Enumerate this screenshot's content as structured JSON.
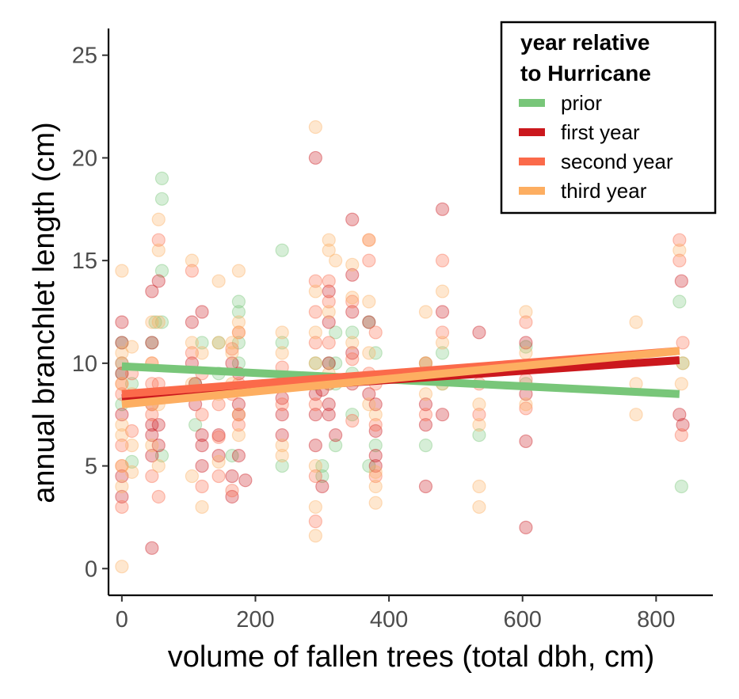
{
  "chart_data": {
    "type": "scatter",
    "title": "",
    "xlabel": "volume of fallen trees (total dbh, cm)",
    "ylabel": "annual branchlet length (cm)",
    "xlim": [
      -20,
      885
    ],
    "ylim": [
      -1.3,
      26.3
    ],
    "xticks": [
      0,
      200,
      400,
      600,
      800
    ],
    "yticks": [
      0,
      5,
      10,
      15,
      20,
      25
    ],
    "grid": false,
    "legend_position": "top-right",
    "legend": {
      "title_lines": [
        "year relative",
        "to Hurricane"
      ]
    },
    "series": [
      {
        "name": "prior",
        "color": "#78c679",
        "trend": {
          "x": [
            0,
            835
          ],
          "y": [
            9.85,
            8.5
          ]
        },
        "points": [
          [
            0,
            10
          ],
          [
            0,
            9.5
          ],
          [
            0,
            8
          ],
          [
            0,
            11
          ],
          [
            15,
            9
          ],
          [
            15,
            5.2
          ],
          [
            45,
            11
          ],
          [
            50,
            12
          ],
          [
            60,
            19
          ],
          [
            60,
            18
          ],
          [
            60,
            14.5
          ],
          [
            60,
            12
          ],
          [
            60,
            5.5
          ],
          [
            110,
            9
          ],
          [
            110,
            7
          ],
          [
            120,
            11
          ],
          [
            145,
            11
          ],
          [
            145,
            9.5
          ],
          [
            165,
            5.5
          ],
          [
            175,
            13
          ],
          [
            175,
            12.5
          ],
          [
            175,
            11
          ],
          [
            175,
            10
          ],
          [
            240,
            15.5
          ],
          [
            240,
            11
          ],
          [
            240,
            9
          ],
          [
            240,
            5
          ],
          [
            290,
            10
          ],
          [
            290,
            9
          ],
          [
            300,
            5
          ],
          [
            300,
            4.5
          ],
          [
            310,
            10
          ],
          [
            310,
            9
          ],
          [
            320,
            11.5
          ],
          [
            320,
            10
          ],
          [
            320,
            9
          ],
          [
            320,
            6
          ],
          [
            345,
            11.5
          ],
          [
            345,
            9.5
          ],
          [
            345,
            7.5
          ],
          [
            370,
            5
          ],
          [
            370,
            12
          ],
          [
            380,
            10.5
          ],
          [
            380,
            6
          ],
          [
            455,
            6
          ],
          [
            455,
            10
          ],
          [
            480,
            10.5
          ],
          [
            480,
            9
          ],
          [
            535,
            6.5
          ],
          [
            605,
            10.8
          ],
          [
            605,
            9
          ],
          [
            835,
            13
          ],
          [
            840,
            10
          ],
          [
            838,
            4
          ]
        ]
      },
      {
        "name": "first year",
        "color": "#cb181d",
        "trend": {
          "x": [
            0,
            835
          ],
          "y": [
            8.3,
            10.15
          ]
        },
        "points": [
          [
            0,
            12
          ],
          [
            0,
            11
          ],
          [
            0,
            9.5
          ],
          [
            0,
            7.5
          ],
          [
            0,
            4.5
          ],
          [
            0,
            3.5
          ],
          [
            45,
            13.5
          ],
          [
            45,
            11
          ],
          [
            45,
            8
          ],
          [
            45,
            7
          ],
          [
            45,
            6.5
          ],
          [
            45,
            5.5
          ],
          [
            45,
            1
          ],
          [
            55,
            14
          ],
          [
            55,
            7
          ],
          [
            55,
            6
          ],
          [
            105,
            12
          ],
          [
            105,
            10
          ],
          [
            110,
            9
          ],
          [
            110,
            8
          ],
          [
            120,
            12.5
          ],
          [
            120,
            6.5
          ],
          [
            120,
            6
          ],
          [
            120,
            5
          ],
          [
            145,
            6.5
          ],
          [
            145,
            5.5
          ],
          [
            165,
            10
          ],
          [
            165,
            4.5
          ],
          [
            165,
            3.5
          ],
          [
            175,
            9.5
          ],
          [
            175,
            8
          ],
          [
            175,
            7.5
          ],
          [
            175,
            5.5
          ],
          [
            185,
            4.3
          ],
          [
            240,
            8.3
          ],
          [
            240,
            7.5
          ],
          [
            240,
            6.5
          ],
          [
            290,
            20
          ],
          [
            290,
            8.5
          ],
          [
            290,
            7.5
          ],
          [
            290,
            6
          ],
          [
            300,
            8.7
          ],
          [
            300,
            4
          ],
          [
            310,
            13.5
          ],
          [
            310,
            12
          ],
          [
            310,
            10
          ],
          [
            310,
            8
          ],
          [
            310,
            7.5
          ],
          [
            320,
            6.5
          ],
          [
            345,
            17
          ],
          [
            345,
            14.3
          ],
          [
            345,
            12.5
          ],
          [
            345,
            10.5
          ],
          [
            345,
            9
          ],
          [
            370,
            12
          ],
          [
            370,
            8.5
          ],
          [
            380,
            8
          ],
          [
            380,
            6.7
          ],
          [
            380,
            5.5
          ],
          [
            380,
            5
          ],
          [
            455,
            8
          ],
          [
            455,
            7
          ],
          [
            455,
            4
          ],
          [
            480,
            17.5
          ],
          [
            480,
            12.5
          ],
          [
            480,
            7.5
          ],
          [
            535,
            11.5
          ],
          [
            605,
            11
          ],
          [
            605,
            8.5
          ],
          [
            605,
            6.2
          ],
          [
            605,
            2
          ],
          [
            835,
            7.5
          ],
          [
            840,
            7
          ],
          [
            838,
            14
          ]
        ]
      },
      {
        "name": "second year",
        "color": "#fb6a4a",
        "trend": {
          "x": [
            0,
            835
          ],
          "y": [
            8.5,
            10.6
          ]
        },
        "points": [
          [
            0,
            10
          ],
          [
            0,
            9
          ],
          [
            0,
            8.5
          ],
          [
            0,
            6
          ],
          [
            0,
            5
          ],
          [
            0,
            3
          ],
          [
            15,
            9.5
          ],
          [
            15,
            6.7
          ],
          [
            45,
            10
          ],
          [
            45,
            9
          ],
          [
            45,
            7.5
          ],
          [
            45,
            4.5
          ],
          [
            55,
            16
          ],
          [
            55,
            9
          ],
          [
            55,
            3.5
          ],
          [
            105,
            14.5
          ],
          [
            105,
            10.5
          ],
          [
            120,
            9.5
          ],
          [
            120,
            7.5
          ],
          [
            120,
            4
          ],
          [
            145,
            8
          ],
          [
            145,
            6.4
          ],
          [
            145,
            4.5
          ],
          [
            165,
            10.7
          ],
          [
            165,
            8.5
          ],
          [
            165,
            3.8
          ],
          [
            175,
            11.5
          ],
          [
            175,
            9
          ],
          [
            175,
            7
          ],
          [
            240,
            9.8
          ],
          [
            240,
            8
          ],
          [
            290,
            14
          ],
          [
            290,
            12.5
          ],
          [
            290,
            11
          ],
          [
            290,
            8
          ],
          [
            290,
            4.5
          ],
          [
            290,
            2.3
          ],
          [
            310,
            14
          ],
          [
            310,
            13
          ],
          [
            310,
            11
          ],
          [
            310,
            9
          ],
          [
            345,
            13
          ],
          [
            345,
            10.2
          ],
          [
            345,
            7.2
          ],
          [
            370,
            16
          ],
          [
            370,
            15
          ],
          [
            370,
            9.5
          ],
          [
            380,
            11.5
          ],
          [
            380,
            9
          ],
          [
            380,
            7
          ],
          [
            380,
            4.5
          ],
          [
            455,
            10
          ],
          [
            455,
            7.5
          ],
          [
            480,
            15
          ],
          [
            480,
            11.5
          ],
          [
            480,
            9.5
          ],
          [
            535,
            9
          ],
          [
            535,
            7.5
          ],
          [
            605,
            12
          ],
          [
            605,
            9.2
          ],
          [
            605,
            7.8
          ],
          [
            835,
            16
          ],
          [
            835,
            15
          ],
          [
            840,
            11
          ],
          [
            838,
            6.5
          ]
        ]
      },
      {
        "name": "third year",
        "color": "#fdae61",
        "trend": {
          "x": [
            0,
            835
          ],
          "y": [
            8.0,
            10.6
          ]
        },
        "points": [
          [
            0,
            14.5
          ],
          [
            0,
            10.5
          ],
          [
            0,
            9
          ],
          [
            0,
            7
          ],
          [
            0,
            6.5
          ],
          [
            0,
            5
          ],
          [
            0,
            4
          ],
          [
            0,
            0.1
          ],
          [
            15,
            10.8
          ],
          [
            15,
            8.5
          ],
          [
            15,
            6
          ],
          [
            15,
            4.7
          ],
          [
            45,
            12
          ],
          [
            45,
            10
          ],
          [
            45,
            8
          ],
          [
            45,
            6
          ],
          [
            55,
            17
          ],
          [
            55,
            15.5
          ],
          [
            55,
            12
          ],
          [
            55,
            8
          ],
          [
            55,
            5
          ],
          [
            105,
            15
          ],
          [
            105,
            11
          ],
          [
            105,
            9
          ],
          [
            105,
            4.5
          ],
          [
            120,
            10.5
          ],
          [
            120,
            8.5
          ],
          [
            120,
            3
          ],
          [
            145,
            14
          ],
          [
            145,
            11
          ],
          [
            145,
            8.5
          ],
          [
            145,
            5.2
          ],
          [
            165,
            11
          ],
          [
            165,
            10.5
          ],
          [
            165,
            9
          ],
          [
            175,
            14.5
          ],
          [
            175,
            12
          ],
          [
            175,
            11.5
          ],
          [
            175,
            7.5
          ],
          [
            175,
            6.5
          ],
          [
            240,
            11.5
          ],
          [
            240,
            10.5
          ],
          [
            240,
            9
          ],
          [
            240,
            6
          ],
          [
            240,
            5.5
          ],
          [
            290,
            21.5
          ],
          [
            290,
            13.5
          ],
          [
            290,
            11.5
          ],
          [
            290,
            10
          ],
          [
            290,
            5
          ],
          [
            290,
            3
          ],
          [
            290,
            1.6
          ],
          [
            310,
            16
          ],
          [
            310,
            15.5
          ],
          [
            310,
            12.5
          ],
          [
            310,
            9.5
          ],
          [
            320,
            15
          ],
          [
            345,
            14.8
          ],
          [
            345,
            13.2
          ],
          [
            345,
            11
          ],
          [
            370,
            16
          ],
          [
            370,
            13
          ],
          [
            370,
            10.5
          ],
          [
            370,
            8
          ],
          [
            380,
            7.5
          ],
          [
            380,
            4.7
          ],
          [
            380,
            4
          ],
          [
            380,
            3.2
          ],
          [
            455,
            12.5
          ],
          [
            455,
            10
          ],
          [
            455,
            8.5
          ],
          [
            480,
            13.5
          ],
          [
            480,
            11
          ],
          [
            480,
            9
          ],
          [
            535,
            8
          ],
          [
            535,
            7
          ],
          [
            535,
            4
          ],
          [
            535,
            3
          ],
          [
            605,
            12.5
          ],
          [
            605,
            10.5
          ],
          [
            605,
            8
          ],
          [
            770,
            12
          ],
          [
            770,
            9
          ],
          [
            770,
            7.5
          ],
          [
            835,
            15.5
          ],
          [
            840,
            10
          ],
          [
            838,
            9
          ]
        ]
      }
    ]
  }
}
